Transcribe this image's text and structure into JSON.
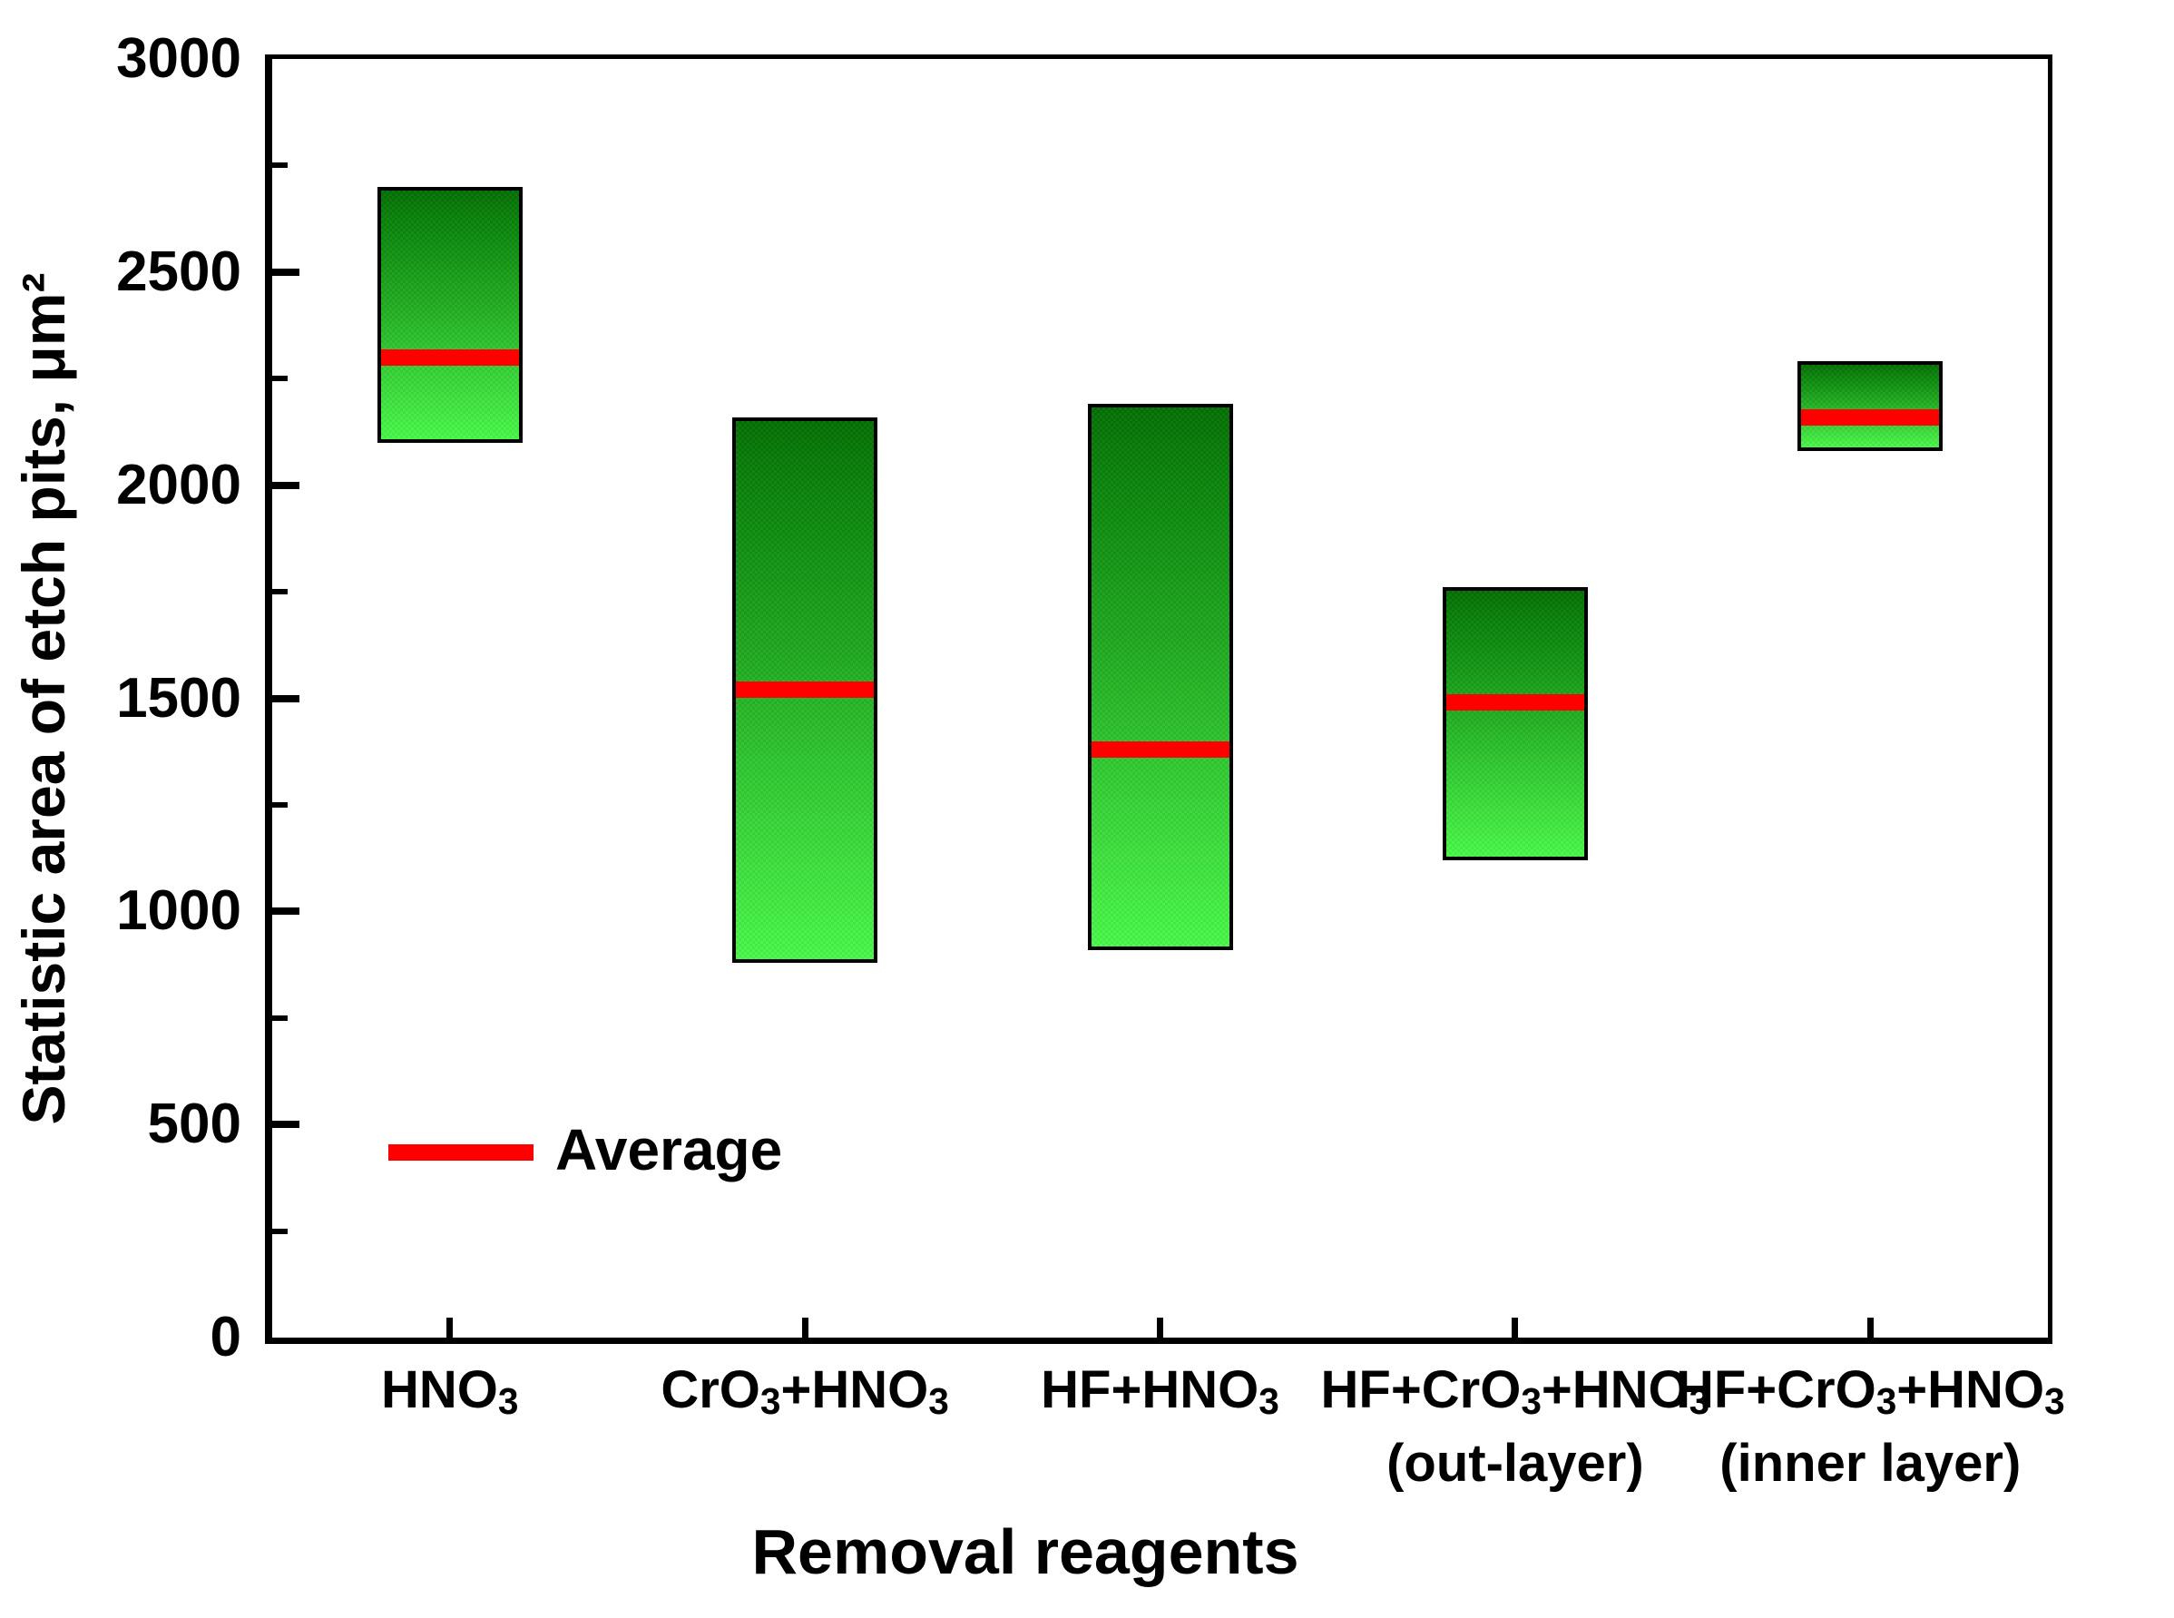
{
  "chart_data": {
    "type": "bar",
    "subtype": "floating-range-bars-with-average-line",
    "title": "",
    "xlabel": "Removal reagents",
    "ylabel": "Statistic area of etch pits, μm²",
    "ylim": [
      0,
      3000
    ],
    "y_major_ticks": [
      0,
      500,
      1000,
      1500,
      2000,
      2500,
      3000
    ],
    "y_minor_ticks": [
      250,
      750,
      1250,
      1750,
      2250,
      2750
    ],
    "grid": false,
    "categories": [
      "HNO₃",
      "CrO₃+HNO₃",
      "HF+HNO₃",
      "HF+CrO₃+HNO₃ (out-layer)",
      "HF+CrO₃+HNO₃ (inner layer)"
    ],
    "categories_rich": [
      {
        "lines": [
          [
            {
              "t": "HNO"
            },
            {
              "t": "3",
              "sub": true
            }
          ]
        ]
      },
      {
        "lines": [
          [
            {
              "t": "CrO"
            },
            {
              "t": "3",
              "sub": true
            },
            {
              "t": "+HNO"
            },
            {
              "t": "3",
              "sub": true
            }
          ]
        ]
      },
      {
        "lines": [
          [
            {
              "t": "HF+HNO"
            },
            {
              "t": "3",
              "sub": true
            }
          ]
        ]
      },
      {
        "lines": [
          [
            {
              "t": "HF+CrO"
            },
            {
              "t": "3",
              "sub": true
            },
            {
              "t": "+HNO"
            },
            {
              "t": "3",
              "sub": true
            }
          ],
          [
            {
              "t": "(out-layer)"
            }
          ]
        ]
      },
      {
        "lines": [
          [
            {
              "t": "HF+CrO"
            },
            {
              "t": "3",
              "sub": true
            },
            {
              "t": "+HNO"
            },
            {
              "t": "3",
              "sub": true
            }
          ],
          [
            {
              "t": "(inner layer)"
            }
          ]
        ]
      }
    ],
    "bars": [
      {
        "category": "HNO₃",
        "min": 2100,
        "max": 2700,
        "avg": 2300
      },
      {
        "category": "CrO₃+HNO₃",
        "min": 880,
        "max": 2160,
        "avg": 1520
      },
      {
        "category": "HF+HNO₃",
        "min": 910,
        "max": 2190,
        "avg": 1380
      },
      {
        "category": "HF+CrO₃+HNO₃ (out-layer)",
        "min": 1120,
        "max": 1760,
        "avg": 1490
      },
      {
        "category": "HF+CrO₃+HNO₃ (inner layer)",
        "min": 2080,
        "max": 2290,
        "avg": 2160
      }
    ],
    "legend": {
      "position": "inside-lower-left",
      "entries": [
        {
          "label": "Average",
          "marker": "thick-line",
          "color": "#ff0000"
        }
      ]
    },
    "colors": {
      "bar_gradient_top": "#046f04",
      "bar_gradient_bottom": "#49f849",
      "bar_border": "#000000",
      "average_line": "#ff0000",
      "axis": "#000000",
      "background": "#ffffff"
    }
  }
}
